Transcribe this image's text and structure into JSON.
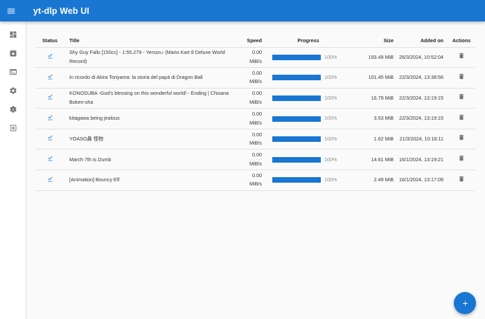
{
  "app": {
    "title": "yt-dlp Web UI",
    "accent_color": "#1976d2"
  },
  "appbar": {
    "menu_icon": "menu-icon"
  },
  "sidebar": {
    "items": [
      {
        "name": "dashboard",
        "icon": "dashboard-icon"
      },
      {
        "name": "archive",
        "icon": "archive-icon"
      },
      {
        "name": "terminal",
        "icon": "terminal-icon"
      },
      {
        "name": "settings",
        "icon": "gear-icon"
      },
      {
        "name": "settings-admin",
        "icon": "admin-gear-icon"
      },
      {
        "name": "logout",
        "icon": "logout-icon"
      }
    ]
  },
  "table": {
    "columns": [
      "Status",
      "Title",
      "Speed",
      "Progress",
      "Size",
      "Added on",
      "Actions"
    ],
    "rows": [
      {
        "status": "completed",
        "title": "Shy Guy Falls [150cc] - 1:55.279 - Yerson♪ (Mario Kart 8 Deluxe World Record)",
        "speed": "0.00 MiB/s",
        "progress": 100,
        "progress_label": "100%",
        "size": "193.49 MiB",
        "added_on": "26/3/2024, 10:52:04"
      },
      {
        "status": "completed",
        "title": "In ricordo di Akira Toriyama: la storia del papà di Dragon Ball",
        "speed": "0.00 MiB/s",
        "progress": 100,
        "progress_label": "100%",
        "size": "101.45 MiB",
        "added_on": "22/3/2024, 13:38:56"
      },
      {
        "status": "completed",
        "title": "KONOSUBA -God's blessing on this wonderful world! - Ending | Chisana Boken-sha",
        "speed": "0.00 MiB/s",
        "progress": 100,
        "progress_label": "100%",
        "size": "16.79 MiB",
        "added_on": "22/3/2024, 13:19:15"
      },
      {
        "status": "completed",
        "title": "kitagawa being jealous",
        "speed": "0.00 MiB/s",
        "progress": 100,
        "progress_label": "100%",
        "size": "3.53 MiB",
        "added_on": "22/3/2024, 13:19:15"
      },
      {
        "status": "completed",
        "title": "YOASO鼻 怪物",
        "speed": "0.00 MiB/s",
        "progress": 100,
        "progress_label": "100%",
        "size": "1.62 MiB",
        "added_on": "21/3/2024, 10:18:11"
      },
      {
        "status": "completed",
        "title": "March 7th is Dumb",
        "speed": "0.00 MiB/s",
        "progress": 100,
        "progress_label": "100%",
        "size": "14.61 MiB",
        "added_on": "16/1/2024, 13:19:21"
      },
      {
        "status": "completed",
        "title": "[Animation] Bouncy Elf",
        "speed": "0.00 MiB/s",
        "progress": 100,
        "progress_label": "100%",
        "size": "2.49 MiB",
        "added_on": "16/1/2024, 13:17:09"
      }
    ]
  },
  "fab": {
    "icon": "plus-icon"
  }
}
